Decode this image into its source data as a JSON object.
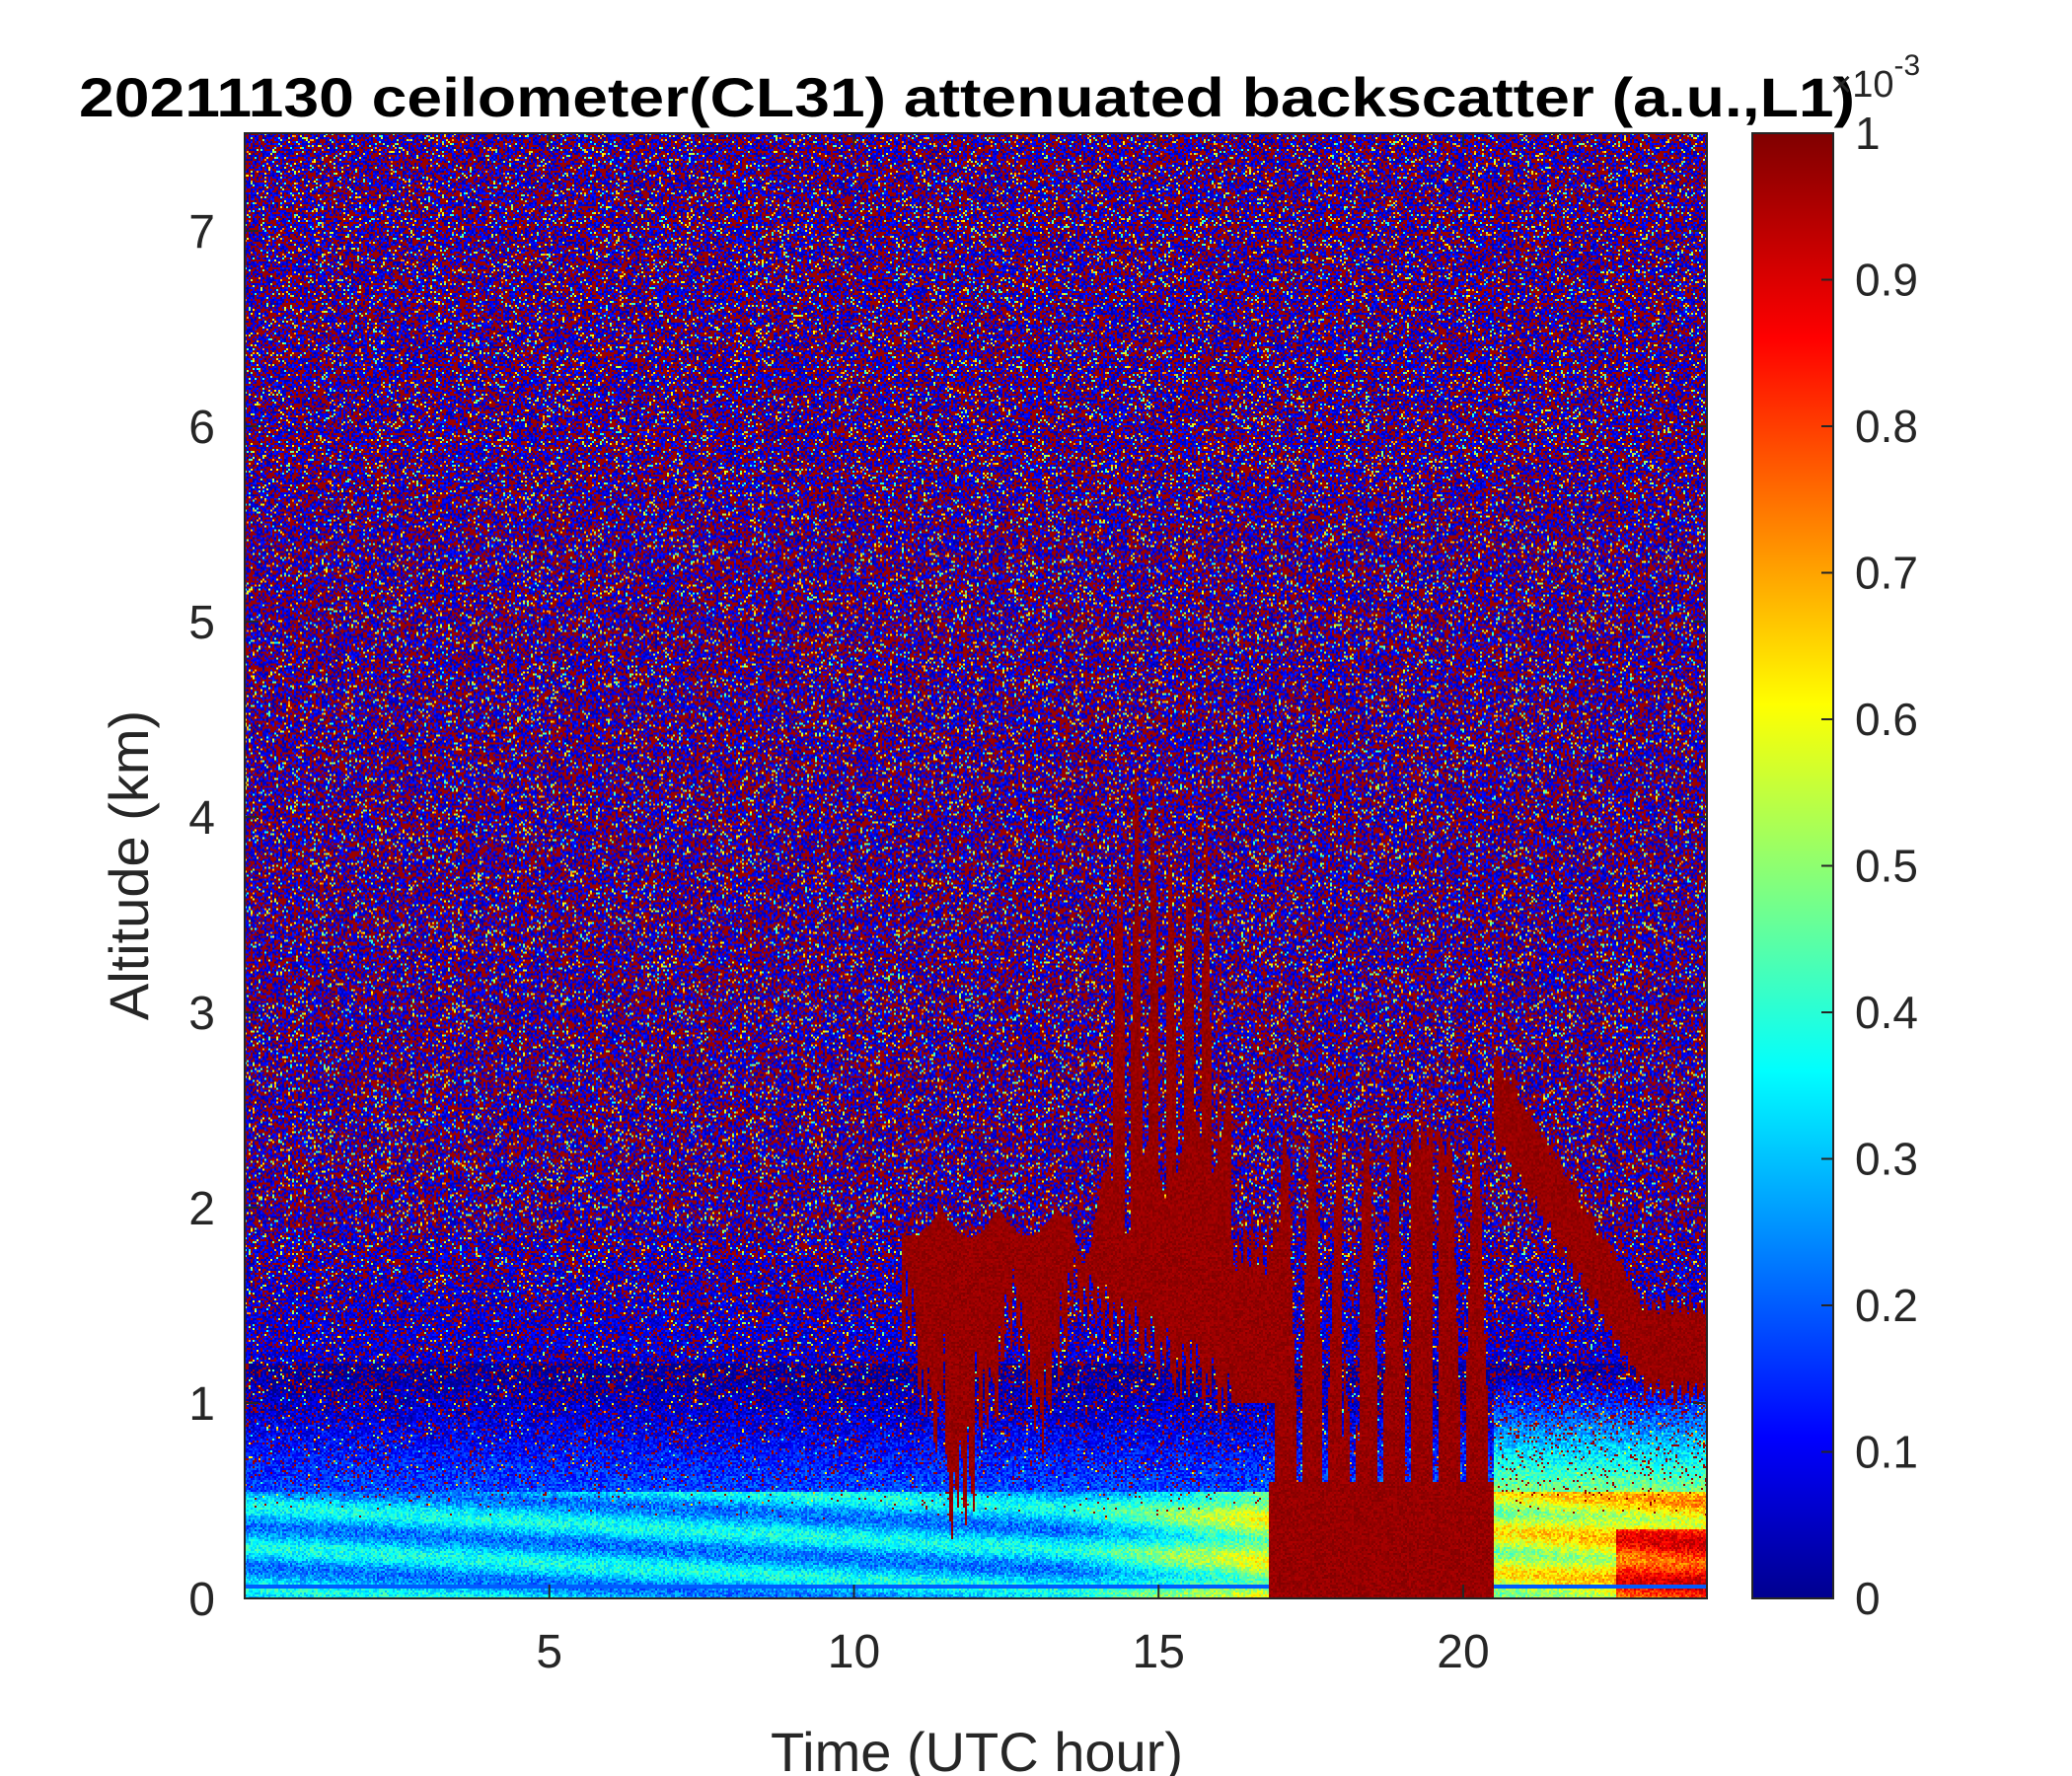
{
  "chart_data": {
    "type": "heatmap",
    "title": "20211130 ceilometer(CL31) attenuated backscatter (a.u.,L1)",
    "xlabel": "Time (UTC hour)",
    "ylabel": "Altitude (km)",
    "xlim": [
      0,
      24
    ],
    "ylim": [
      0,
      7.5
    ],
    "xticks": [
      "5",
      "10",
      "15",
      "20"
    ],
    "yticks": [
      "0",
      "1",
      "2",
      "3",
      "4",
      "5",
      "6",
      "7"
    ],
    "colorbar": {
      "clim": [
        0,
        0.001
      ],
      "multiplier_base": "×10",
      "multiplier_exponent": "-3",
      "ticks": [
        "0",
        "0.1",
        "0.2",
        "0.3",
        "0.4",
        "0.5",
        "0.6",
        "0.7",
        "0.8",
        "0.9",
        "1"
      ],
      "colormap": "jet"
    },
    "features": [
      {
        "kind": "noise_aloft",
        "from_altitude": 1.0,
        "to_altitude": 7.5,
        "character": "random speckle, saturated and low values"
      },
      {
        "kind": "surface_aerosol_layer",
        "time": [
          0,
          24
        ],
        "top_altitude": 0.5,
        "level": 0.35
      },
      {
        "kind": "cloud_layer",
        "time": [
          10.8,
          13.5
        ],
        "base_altitude": 1.2,
        "top_altitude": 2.0,
        "level": 1.0
      },
      {
        "kind": "cloud_deck",
        "time": [
          13.5,
          16.2
        ],
        "base_altitude": 1.0,
        "top_altitude": 2.5,
        "level": 1.0
      },
      {
        "kind": "cloud_plumes",
        "time": [
          14.2,
          16.0
        ],
        "top_altitude": 4.3,
        "level": 1.0
      },
      {
        "kind": "low_cloud",
        "time": [
          16.8,
          20.5
        ],
        "base_altitude": 0.0,
        "top_altitude": 2.4,
        "level": 1.0
      },
      {
        "kind": "descending_cloud",
        "time": [
          20.5,
          24.0
        ],
        "altitude_start": 2.6,
        "altitude_end": 1.3,
        "level": 1.0
      }
    ]
  }
}
